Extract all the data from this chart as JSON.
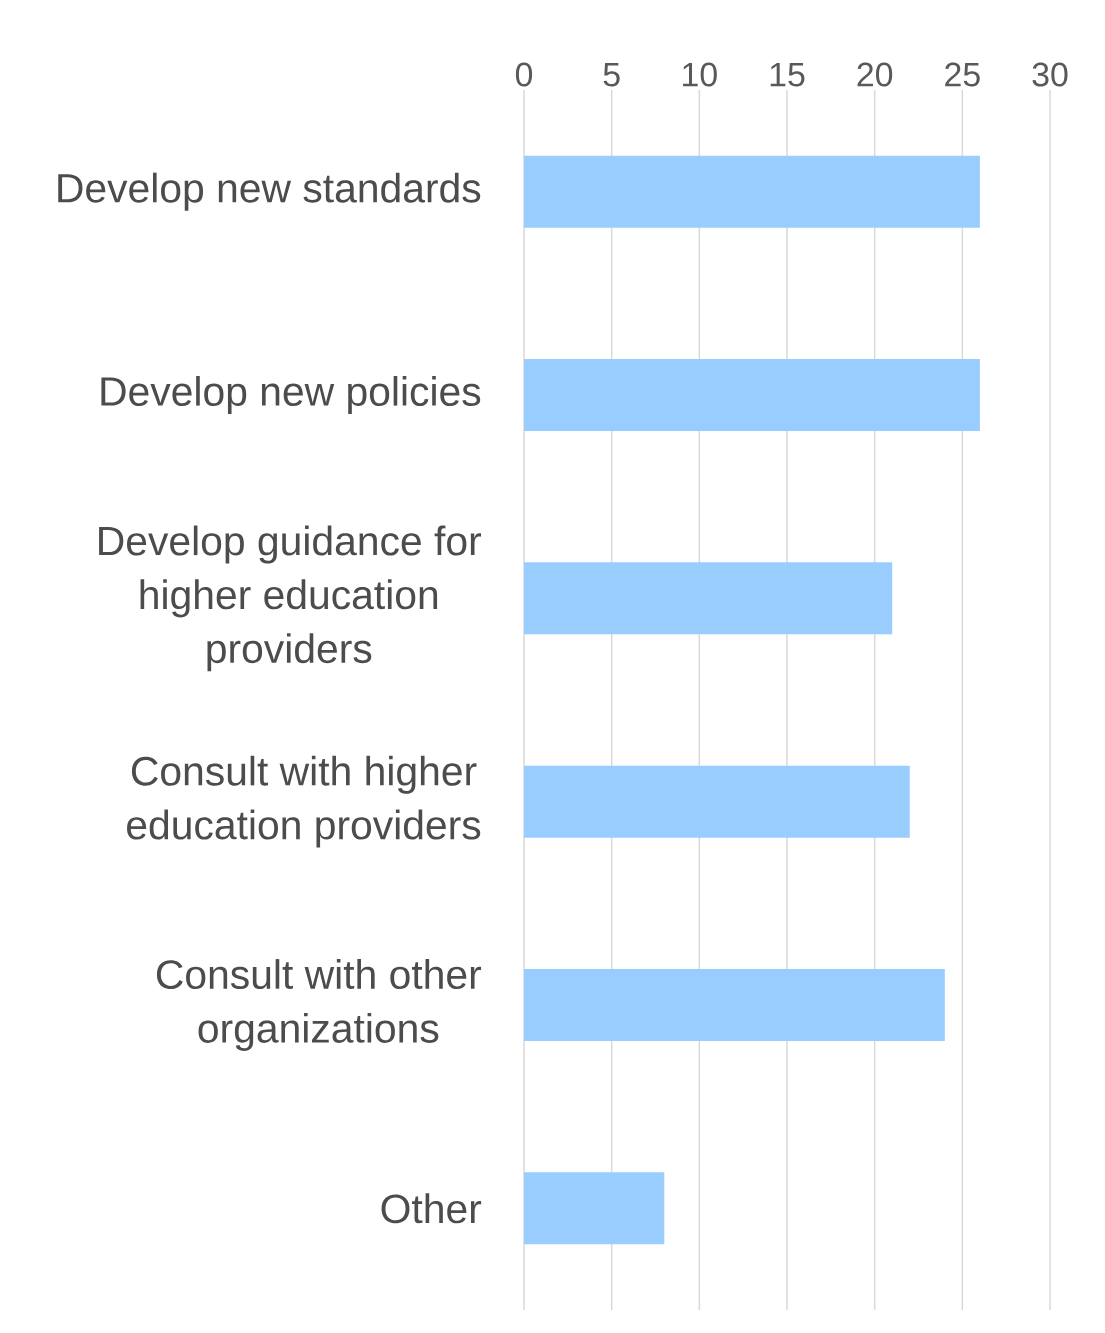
{
  "chart_data": {
    "type": "bar",
    "orientation": "horizontal",
    "categories": [
      "Develop new standards",
      "Develop new policies",
      "Develop guidance for higher education providers",
      "Consult with higher education providers",
      "Consult with other organizations",
      "Other"
    ],
    "values": [
      26,
      26,
      21,
      22,
      24,
      8
    ],
    "color": "#99ccff",
    "xlim": [
      0,
      30
    ],
    "xticks": [
      0,
      5,
      10,
      15,
      20,
      25,
      30
    ],
    "grid": "x"
  }
}
